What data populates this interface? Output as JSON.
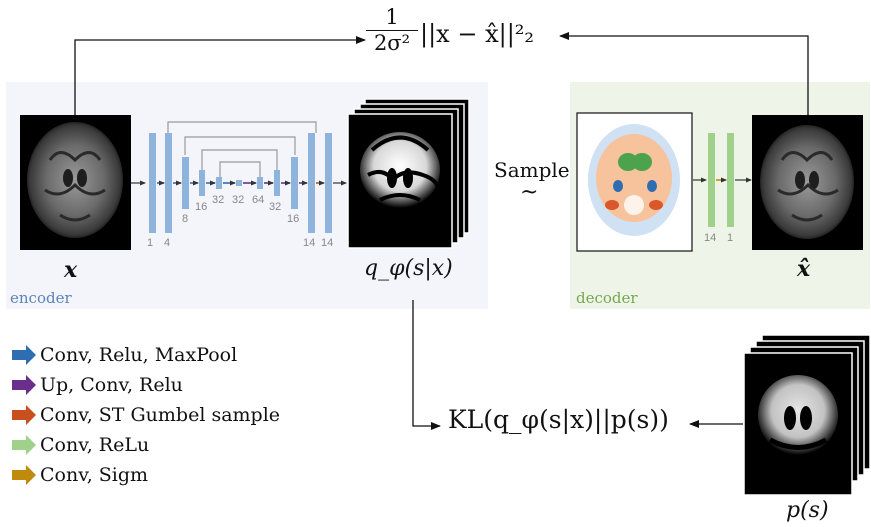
{
  "loss": {
    "recon_numerator": "1",
    "recon_denominator": "2σ²",
    "recon_term": "||x − x̂||²₂"
  },
  "encoder": {
    "panel_label": "encoder",
    "input_label": "x",
    "output_label": "q_φ(s|x)",
    "channel_labels": [
      "1",
      "4",
      "8",
      "16",
      "32",
      "32",
      "64",
      "32",
      "16",
      "14",
      "14"
    ]
  },
  "decoder": {
    "panel_label": "decoder",
    "sample_label": "Sample",
    "sample_symbol": "~",
    "channel_labels": [
      "14",
      "1"
    ],
    "output_label": "x̂"
  },
  "kl": {
    "term": "KL(q_φ(s|x)||p(s))",
    "prior_label": "p(s)"
  },
  "legend": [
    {
      "label": "Conv, Relu, MaxPool",
      "color": "#2f6db3"
    },
    {
      "label": "Up, Conv, Relu",
      "color": "#6a2f8c"
    },
    {
      "label": "Conv, ST Gumbel sample",
      "color": "#c8501e"
    },
    {
      "label": "Conv, ReLu",
      "color": "#9fd18b"
    },
    {
      "label": "Conv, Sigm",
      "color": "#c08a0f"
    }
  ]
}
